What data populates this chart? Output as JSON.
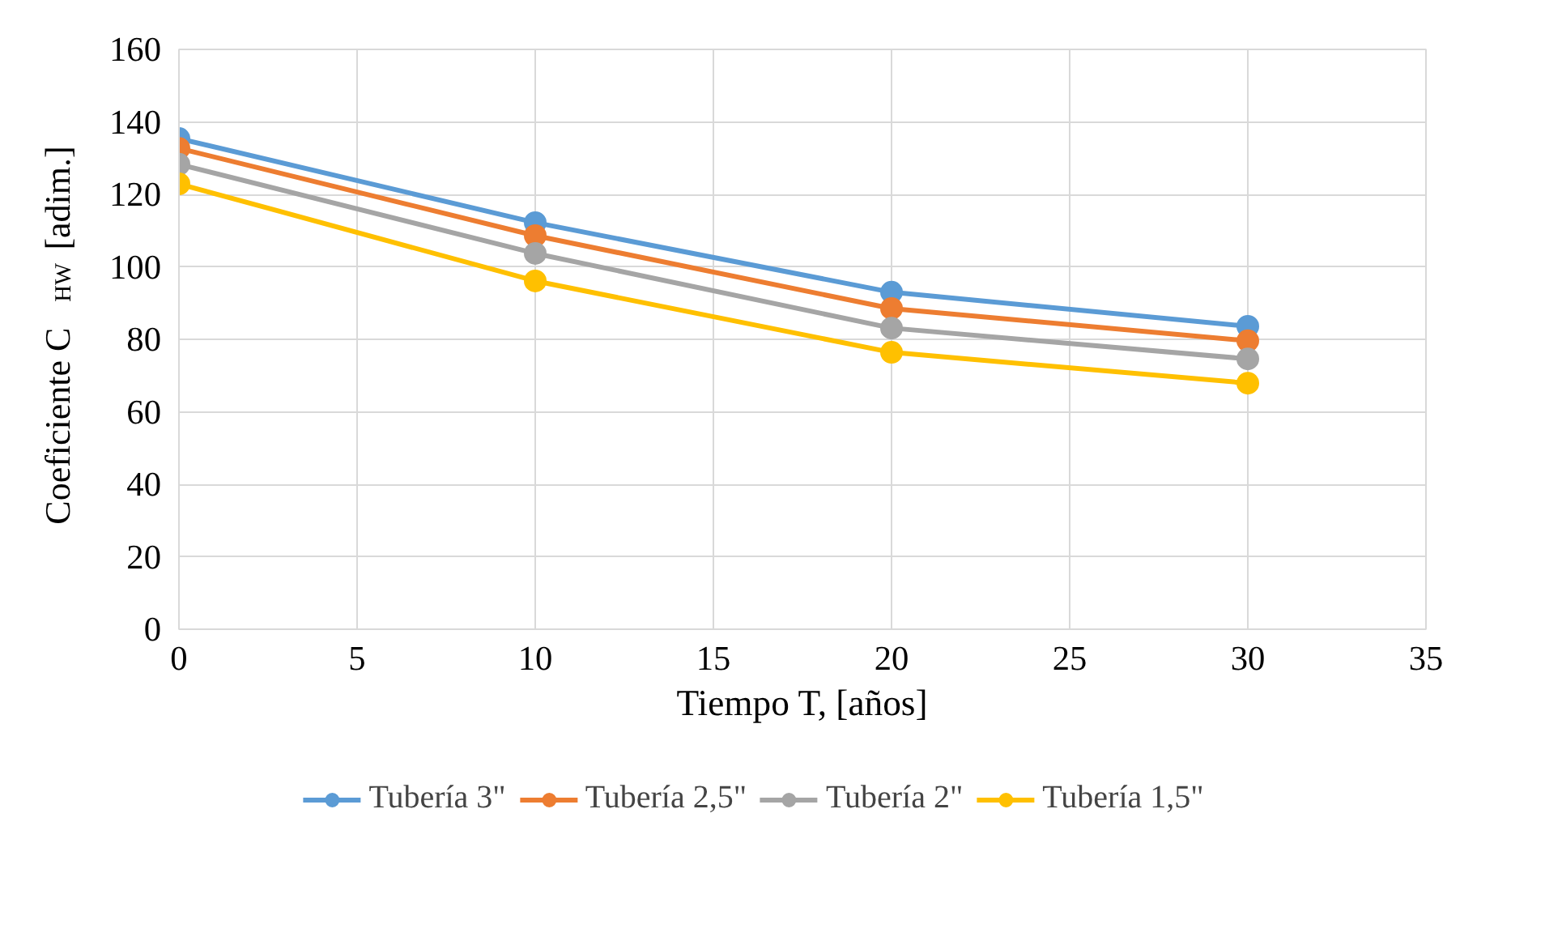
{
  "chart_data": {
    "type": "line",
    "xlabel": "Tiempo T, [años]",
    "ylabel": "Coeficiente  C$_{HW}$ [adim.]",
    "x": [
      0,
      10,
      20,
      30
    ],
    "series": [
      {
        "name": "Tubería 3\"",
        "color": "#5b9bd5",
        "values": [
          135.4,
          112.2,
          93,
          83.6
        ]
      },
      {
        "name": "Tubería 2,5\"",
        "color": "#ed7d31",
        "values": [
          132.7,
          108.6,
          88.5,
          79.6
        ]
      },
      {
        "name": "Tubería 2\"",
        "color": "#a5a5a5",
        "values": [
          128.3,
          103.7,
          83.1,
          74.6
        ]
      },
      {
        "name": "Tubería 1,5\"",
        "color": "#ffc000",
        "values": [
          122.9,
          96.1,
          76.4,
          67.9
        ]
      }
    ],
    "xlim": [
      0,
      35
    ],
    "xticks": [
      0,
      5,
      10,
      15,
      20,
      25,
      30,
      35
    ],
    "ylim": [
      0,
      160
    ],
    "yticks": [
      0,
      20,
      40,
      60,
      80,
      100,
      120,
      140,
      160
    ],
    "grid": true,
    "legend": "bottom",
    "marker": "circle",
    "line_style": "solid"
  }
}
